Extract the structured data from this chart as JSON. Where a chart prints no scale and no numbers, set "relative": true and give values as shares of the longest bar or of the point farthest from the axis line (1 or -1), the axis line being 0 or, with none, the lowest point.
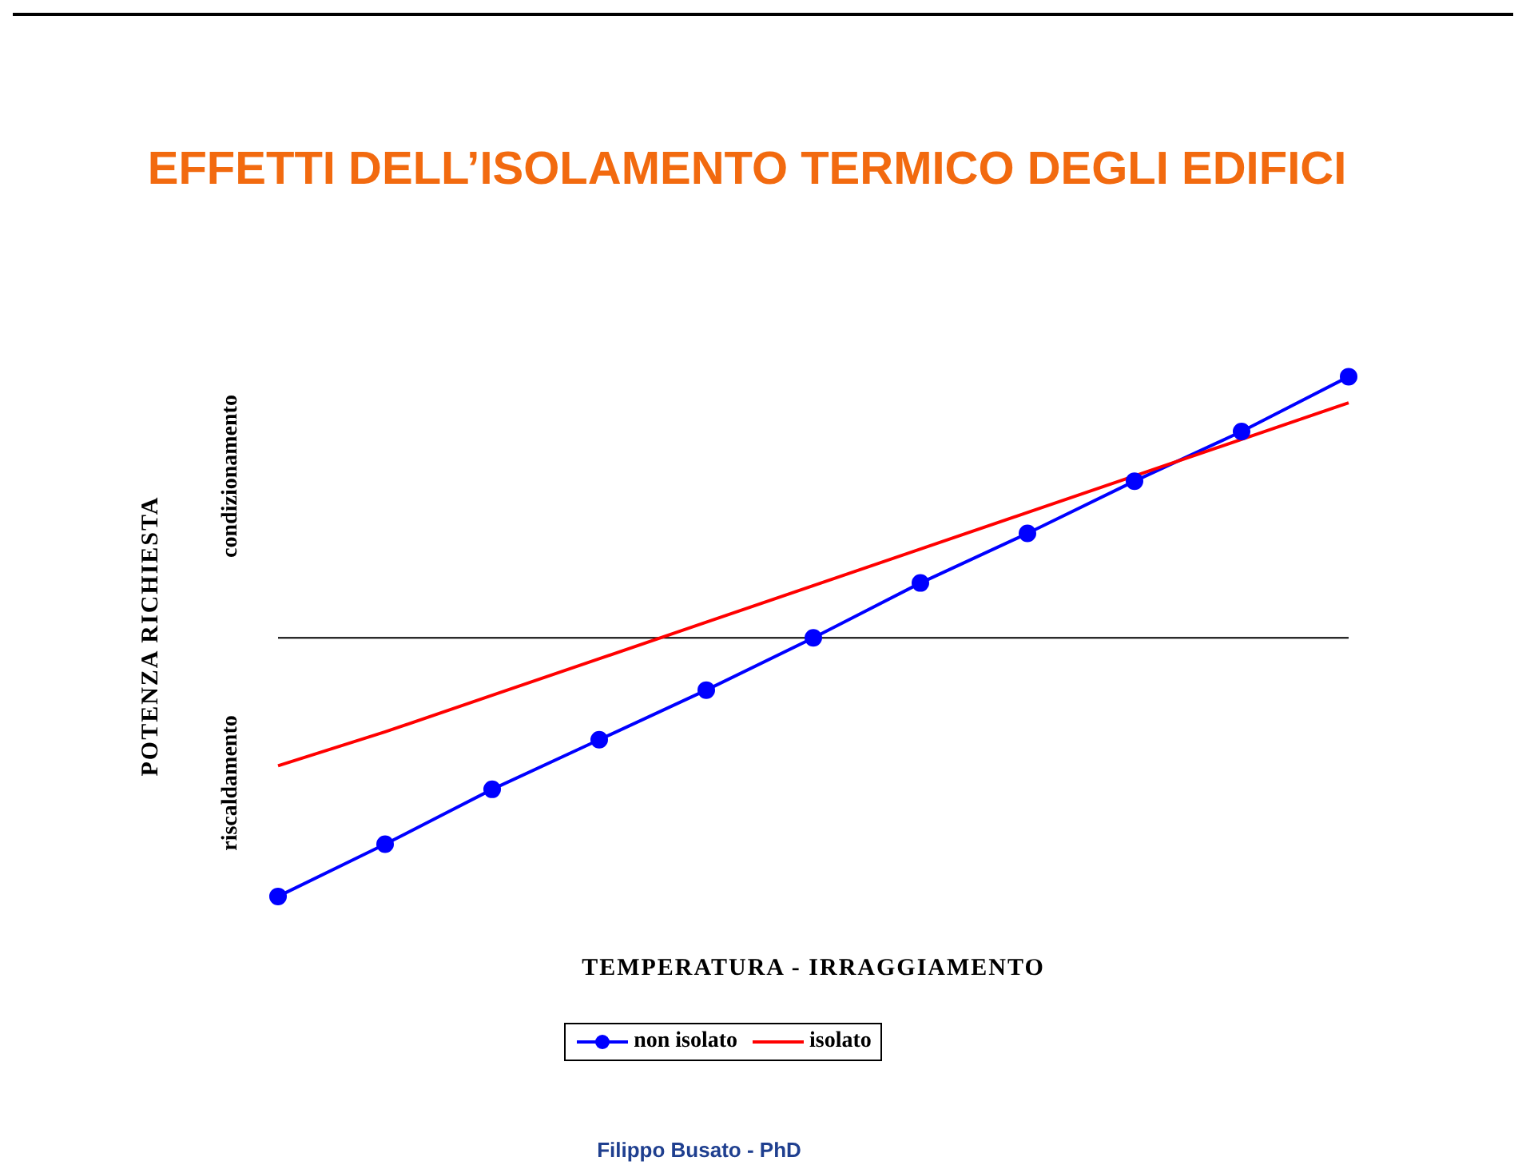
{
  "chart_data": {
    "type": "line",
    "title": "EFFETTI DELL’ISOLAMENTO TERMICO DEGLI EDIFICI",
    "xlabel": "TEMPERATURA - IRRAGGIAMENTO",
    "ylabel": "POTENZA RICHIESTA",
    "annotations": [
      "riscaldamento",
      "condizionamento",
      "Filippo Busato - PhD"
    ],
    "relative": true,
    "categories": [
      null,
      null,
      null,
      null,
      null,
      null,
      null,
      null,
      null,
      null,
      null
    ],
    "series": [
      {
        "name": "non isolato",
        "color": "#0000ff",
        "marker": "circle",
        "values": [
          -0.99,
          -0.79,
          -0.58,
          -0.39,
          -0.2,
          0,
          0.21,
          0.4,
          0.6,
          0.79,
          1
        ]
      },
      {
        "name": "isolato",
        "color": "#ff0000",
        "marker": "none",
        "values": [
          -0.49,
          -0.36,
          -0.22,
          -0.08,
          0.06,
          0.2,
          0.34,
          0.48,
          0.62,
          0.76,
          0.9
        ]
      }
    ],
    "legend": "bottom",
    "grid": false
  }
}
